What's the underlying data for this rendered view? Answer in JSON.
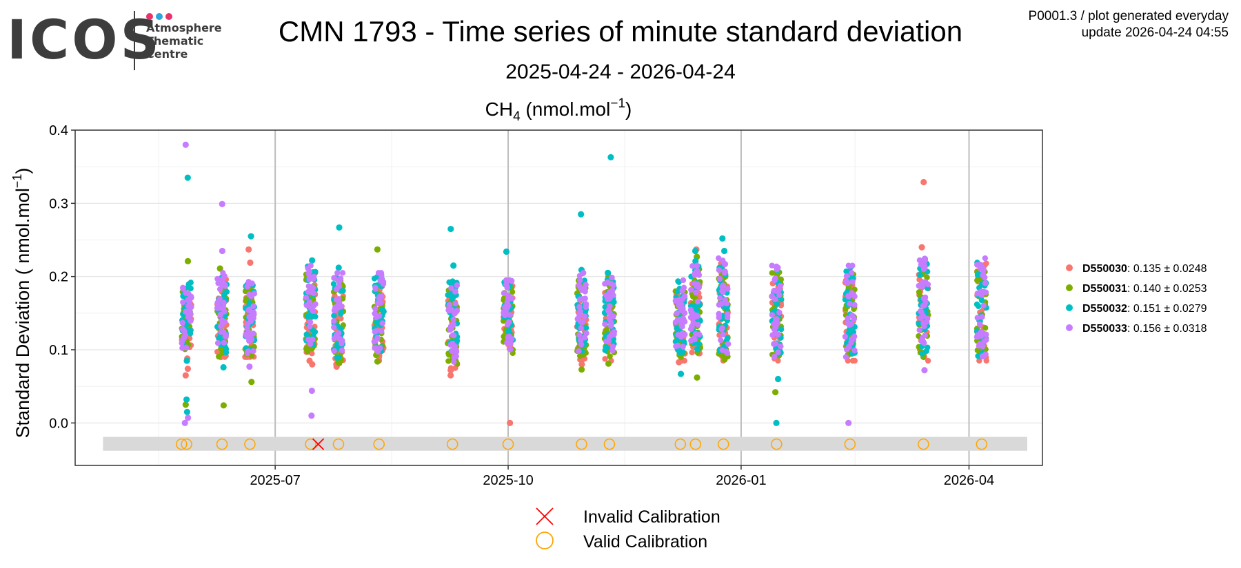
{
  "logo": {
    "wordmark": "ICOS",
    "lines": [
      "Atmosphere",
      "Thematic",
      "Centre"
    ],
    "dot_colors": [
      "#e8336d",
      "#2aa6e0",
      "#e8336d"
    ]
  },
  "header": {
    "title": "CMN 1793 - Time series of minute standard deviation",
    "subtitle": "2025-04-24 - 2026-04-24",
    "meta_line1": "P0001.3 / plot generated everyday",
    "meta_line2": "update  2026-04-24 04:55"
  },
  "chart_data": {
    "type": "scatter",
    "panel_title": {
      "species": "CH",
      "subscript": "4",
      "units_prefix": " (nmol.mol",
      "superscript": "−1",
      "units_suffix": ")"
    },
    "ylabel": {
      "prefix": "Standard Deviation ( nmol.mol",
      "superscript": "−1",
      "suffix": ")"
    },
    "x_range": [
      "2025-04-13",
      "2026-04-30"
    ],
    "ylim": [
      -0.058,
      0.4
    ],
    "yticks": [
      0.0,
      0.1,
      0.2,
      0.3,
      0.4
    ],
    "ytick_labels": [
      "0.0",
      "0.1",
      "0.2",
      "0.3",
      "0.4"
    ],
    "xticks": [
      "2025-07-01",
      "2025-10-01",
      "2026-01-01",
      "2026-04-01"
    ],
    "xtick_labels": [
      "2025-07",
      "2025-10",
      "2026-01",
      "2026-04"
    ],
    "series": [
      {
        "name": "D550030",
        "stats": "0.135 ± 0.0248",
        "color": "#F8766D"
      },
      {
        "name": "D550031",
        "stats": "0.140 ± 0.0253",
        "color": "#7CAE00"
      },
      {
        "name": "D550032",
        "stats": "0.151 ± 0.0279",
        "color": "#00BFC4"
      },
      {
        "name": "D550033",
        "stats": "0.156 ± 0.0318",
        "color": "#C77CFF"
      }
    ],
    "sessions": [
      {
        "date": "2025-05-27",
        "range": [
          0.1,
          0.19
        ],
        "extremes": {
          "D550030": [
            0.074,
            0.088,
            0.065
          ],
          "D550031": [
            0.221,
            0.025
          ],
          "D550032": [
            0.335,
            0.032,
            0.015,
            0.085
          ],
          "D550033": [
            0.38,
            0.007,
            0.0
          ]
        }
      },
      {
        "date": "2025-06-10",
        "range": [
          0.095,
          0.2
        ],
        "extremes": {
          "D550030": [
            0.09
          ],
          "D550031": [
            0.211,
            0.024
          ],
          "D550032": [
            0.076
          ],
          "D550033": [
            0.299,
            0.235
          ]
        }
      },
      {
        "date": "2025-06-21",
        "range": [
          0.095,
          0.19
        ],
        "extremes": {
          "D550030": [
            0.237,
            0.219
          ],
          "D550031": [
            0.056
          ],
          "D550032": [
            0.255
          ],
          "D550033": [
            0.077
          ]
        }
      },
      {
        "date": "2025-07-15",
        "range": [
          0.1,
          0.21
        ],
        "extremes": {
          "D550030": [
            0.085,
            0.08
          ],
          "D550031": [
            0.201
          ],
          "D550032": [
            0.222
          ],
          "D550033": [
            0.044,
            0.01
          ]
        }
      },
      {
        "date": "2025-07-26",
        "range": [
          0.085,
          0.2
        ],
        "extremes": {
          "D550030": [
            0.077
          ],
          "D550031": [
            0.083
          ],
          "D550032": [
            0.267,
            0.212
          ],
          "D550033": []
        }
      },
      {
        "date": "2025-08-11",
        "range": [
          0.09,
          0.2
        ],
        "extremes": {
          "D550030": [
            0.204
          ],
          "D550031": [
            0.237,
            0.084
          ],
          "D550032": [],
          "D550033": []
        }
      },
      {
        "date": "2025-09-09",
        "range": [
          0.08,
          0.19
        ],
        "extremes": {
          "D550030": [
            0.072,
            0.065
          ],
          "D550031": [],
          "D550032": [
            0.265,
            0.215
          ],
          "D550033": []
        }
      },
      {
        "date": "2025-10-01",
        "range": [
          0.1,
          0.19
        ],
        "extremes": {
          "D550030": [
            0.0
          ],
          "D550031": [],
          "D550032": [
            0.234
          ],
          "D550033": []
        }
      },
      {
        "date": "2025-10-30",
        "range": [
          0.09,
          0.2
        ],
        "extremes": {
          "D550030": [
            0.08
          ],
          "D550031": [
            0.073
          ],
          "D550032": [
            0.285,
            0.209
          ],
          "D550033": []
        }
      },
      {
        "date": "2025-11-10",
        "range": [
          0.09,
          0.2
        ],
        "extremes": {
          "D550030": [],
          "D550031": [
            0.081
          ],
          "D550032": [
            0.363,
            0.205
          ],
          "D550033": []
        }
      },
      {
        "date": "2025-12-08",
        "range": [
          0.09,
          0.19
        ],
        "extremes": {
          "D550030": [
            0.083
          ],
          "D550031": [],
          "D550032": [
            0.067
          ],
          "D550033": []
        }
      },
      {
        "date": "2025-12-14",
        "range": [
          0.1,
          0.21
        ],
        "extremes": {
          "D550030": [
            0.237,
            0.104
          ],
          "D550031": [
            0.227,
            0.062
          ],
          "D550032": [
            0.235,
            0.221
          ],
          "D550033": []
        }
      },
      {
        "date": "2025-12-25",
        "range": [
          0.09,
          0.22
        ],
        "extremes": {
          "D550030": [],
          "D550031": [
            0.092
          ],
          "D550032": [
            0.252,
            0.235
          ],
          "D550033": [
            0.217
          ]
        }
      },
      {
        "date": "2026-01-15",
        "range": [
          0.09,
          0.21
        ],
        "extremes": {
          "D550030": [],
          "D550031": [
            0.042
          ],
          "D550032": [
            0.06,
            0.0
          ],
          "D550033": [
            0.212
          ]
        }
      },
      {
        "date": "2026-02-13",
        "range": [
          0.09,
          0.21
        ],
        "extremes": {
          "D550030": [
            0.1
          ],
          "D550031": [
            0.093
          ],
          "D550032": [
            0.213
          ],
          "D550033": [
            0.0
          ]
        }
      },
      {
        "date": "2026-03-14",
        "range": [
          0.09,
          0.22
        ],
        "extremes": {
          "D550030": [
            0.329,
            0.24
          ],
          "D550031": [],
          "D550032": [
            0.224
          ],
          "D550033": [
            0.072
          ]
        }
      },
      {
        "date": "2026-04-06",
        "range": [
          0.09,
          0.22
        ],
        "extremes": {
          "D550030": [],
          "D550031": [],
          "D550032": [],
          "D550033": [
            0.216,
            0.091
          ]
        }
      }
    ],
    "calibration_y": -0.029,
    "valid_calibrations": [
      "2025-05-25",
      "2025-05-27",
      "2025-06-10",
      "2025-06-21",
      "2025-07-15",
      "2025-07-26",
      "2025-08-11",
      "2025-09-09",
      "2025-10-01",
      "2025-10-30",
      "2025-11-10",
      "2025-12-08",
      "2025-12-14",
      "2025-12-25",
      "2026-01-15",
      "2026-02-13",
      "2026-03-14",
      "2026-04-06"
    ],
    "invalid_calibrations": [
      "2025-07-18"
    ],
    "calibration_band": {
      "from": "2025-04-24",
      "to": "2026-04-24",
      "y_low": -0.038,
      "y_high": -0.019
    },
    "calibration_legend": {
      "invalid_label": "Invalid Calibration",
      "valid_label": "Valid Calibration",
      "invalid_color": "#FF0000",
      "valid_color": "#FFA500"
    },
    "legend_position": "right"
  }
}
